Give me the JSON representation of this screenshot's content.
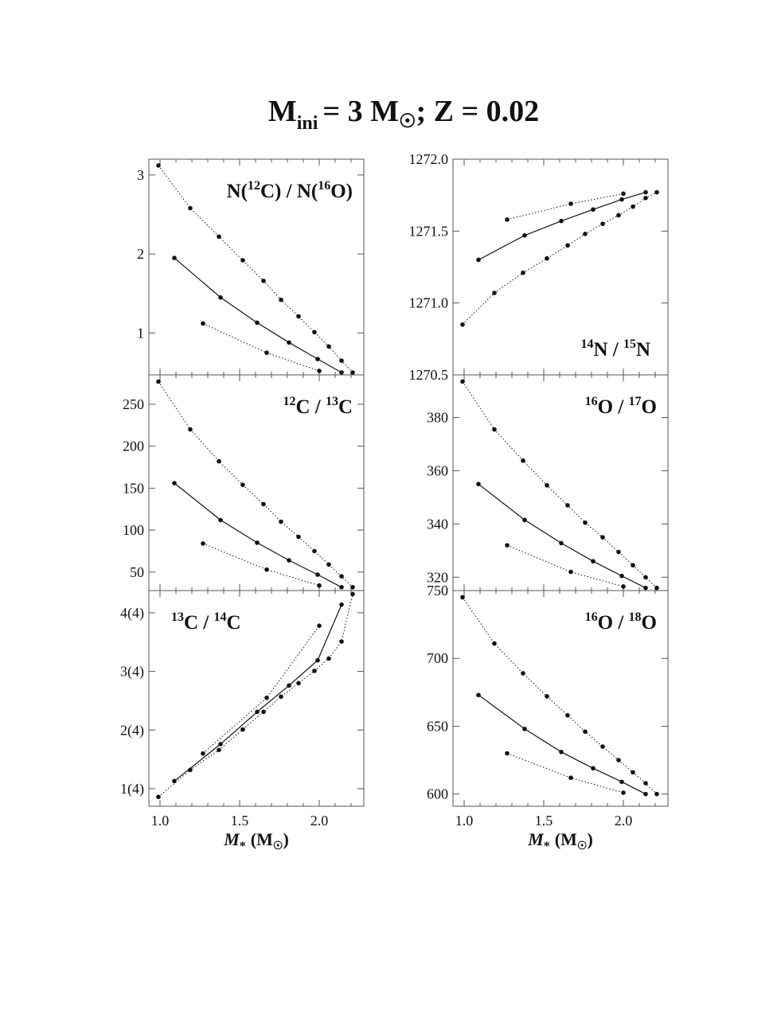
{
  "figure": {
    "title": {
      "main": "M",
      "sub": "ini",
      "rest": "= 3 M",
      "tail": "; Z = 0.02"
    },
    "xlabel": "M",
    "xlabel_unit": "(M",
    "xlabel_close": ")"
  },
  "chart_data": [
    {
      "type": "line",
      "panel": "top-left",
      "label_parts": [
        "N(",
        "12",
        "C) / N(",
        "16",
        "O)"
      ],
      "label_position": "top-right",
      "xlim": [
        0.93,
        2.28
      ],
      "ylim": [
        0.47,
        3.2
      ],
      "xticks": [
        1.0,
        1.5,
        2.0
      ],
      "xtick_labels": [
        "1.0",
        "1.5",
        "2.0"
      ],
      "yticks": [
        1,
        2,
        3
      ],
      "ytick_labels": [
        "1",
        "2",
        "3"
      ],
      "series": [
        {
          "style": "dotted",
          "x": [
            0.99,
            1.19,
            1.37,
            1.52,
            1.65,
            1.76,
            1.87,
            1.97,
            2.06,
            2.14,
            2.21
          ],
          "y": [
            3.12,
            2.58,
            2.22,
            1.92,
            1.66,
            1.42,
            1.21,
            1.01,
            0.83,
            0.65,
            0.5
          ]
        },
        {
          "style": "solid",
          "x": [
            1.09,
            1.38,
            1.61,
            1.81,
            1.99,
            2.14
          ],
          "y": [
            1.95,
            1.45,
            1.13,
            0.88,
            0.67,
            0.5
          ]
        },
        {
          "style": "dotted",
          "x": [
            1.27,
            1.67,
            2.0
          ],
          "y": [
            1.12,
            0.75,
            0.52
          ]
        }
      ]
    },
    {
      "type": "line",
      "panel": "top-right",
      "label_parts": [
        "",
        "14",
        "N / ",
        "15",
        "N"
      ],
      "label_position": "bottom-right",
      "xlim": [
        0.93,
        2.28
      ],
      "ylim": [
        1270.5,
        1272.0
      ],
      "xticks": [
        1.0,
        1.5,
        2.0
      ],
      "xtick_labels": [
        "1.0",
        "1.5",
        "2.0"
      ],
      "yticks": [
        1270.5,
        1271.0,
        1271.5,
        1272.0
      ],
      "ytick_labels": [
        "1270.5",
        "1271.0",
        "1271.5",
        "1272.0"
      ],
      "series": [
        {
          "style": "dotted",
          "x": [
            1.27,
            1.67,
            2.0
          ],
          "y": [
            1271.58,
            1271.69,
            1271.76
          ]
        },
        {
          "style": "solid",
          "x": [
            1.09,
            1.38,
            1.61,
            1.81,
            1.99,
            2.14
          ],
          "y": [
            1271.3,
            1271.47,
            1271.57,
            1271.65,
            1271.72,
            1271.77
          ]
        },
        {
          "style": "dotted",
          "x": [
            0.99,
            1.19,
            1.37,
            1.52,
            1.65,
            1.76,
            1.87,
            1.97,
            2.06,
            2.14,
            2.21
          ],
          "y": [
            1270.85,
            1271.07,
            1271.21,
            1271.31,
            1271.4,
            1271.48,
            1271.55,
            1271.61,
            1271.67,
            1271.73,
            1271.77
          ]
        }
      ]
    },
    {
      "type": "line",
      "panel": "middle-left",
      "label_parts": [
        "",
        "12",
        "C / ",
        "13",
        "C"
      ],
      "label_position": "top-right",
      "xlim": [
        0.93,
        2.28
      ],
      "ylim": [
        28,
        285
      ],
      "xticks": [
        1.0,
        1.5,
        2.0
      ],
      "xtick_labels": [
        "1.0",
        "1.5",
        "2.0"
      ],
      "yticks": [
        50,
        100,
        150,
        200,
        250
      ],
      "ytick_labels": [
        "50",
        "100",
        "150",
        "200",
        "250"
      ],
      "series": [
        {
          "style": "dotted",
          "x": [
            0.99,
            1.19,
            1.37,
            1.52,
            1.65,
            1.76,
            1.87,
            1.97,
            2.06,
            2.14,
            2.21
          ],
          "y": [
            277,
            220,
            182,
            154,
            131,
            110,
            92,
            75,
            59,
            45,
            32
          ]
        },
        {
          "style": "solid",
          "x": [
            1.09,
            1.38,
            1.61,
            1.81,
            1.99,
            2.14
          ],
          "y": [
            156,
            112,
            85,
            64,
            47,
            32
          ]
        },
        {
          "style": "dotted",
          "x": [
            1.27,
            1.67,
            2.0
          ],
          "y": [
            84,
            53,
            34
          ]
        }
      ]
    },
    {
      "type": "line",
      "panel": "middle-right",
      "label_parts": [
        "",
        "16",
        "O / ",
        "17",
        "O"
      ],
      "label_position": "top-right",
      "xlim": [
        0.93,
        2.28
      ],
      "ylim": [
        315,
        396
      ],
      "xticks": [
        1.0,
        1.5,
        2.0
      ],
      "xtick_labels": [
        "1.0",
        "1.5",
        "2.0"
      ],
      "yticks": [
        320,
        340,
        360,
        380
      ],
      "ytick_labels": [
        "320",
        "340",
        "360",
        "380"
      ],
      "series": [
        {
          "style": "dotted",
          "x": [
            0.99,
            1.19,
            1.37,
            1.52,
            1.65,
            1.76,
            1.87,
            1.97,
            2.06,
            2.14,
            2.21
          ],
          "y": [
            393.5,
            375.5,
            363.8,
            354.5,
            347,
            340.5,
            335,
            329.5,
            324.5,
            320,
            316
          ]
        },
        {
          "style": "solid",
          "x": [
            1.09,
            1.38,
            1.61,
            1.81,
            1.99,
            2.14
          ],
          "y": [
            355,
            341.5,
            332.8,
            326,
            320.5,
            316
          ]
        },
        {
          "style": "dotted",
          "x": [
            1.27,
            1.67,
            2.0
          ],
          "y": [
            332,
            322,
            316.5
          ]
        }
      ]
    },
    {
      "type": "line",
      "panel": "bottom-left",
      "label_parts": [
        "",
        "13",
        "C / ",
        "14",
        "C"
      ],
      "label_position": "top-left",
      "xlim": [
        0.93,
        2.28
      ],
      "ylim": [
        0.7,
        4.38
      ],
      "xticks": [
        1.0,
        1.5,
        2.0
      ],
      "xtick_labels": [
        "1.0",
        "1.5",
        "2.0"
      ],
      "yticks": [
        1,
        2,
        3,
        4
      ],
      "ytick_labels": [
        "1(4)",
        "2(4)",
        "3(4)",
        "4(4)"
      ],
      "series": [
        {
          "style": "dotted",
          "x": [
            1.27,
            1.67,
            2.0
          ],
          "y": [
            1.6,
            2.55,
            3.78
          ]
        },
        {
          "style": "solid",
          "x": [
            1.09,
            1.38,
            1.61,
            1.81,
            1.99,
            2.14
          ],
          "y": [
            1.13,
            1.76,
            2.31,
            2.76,
            3.19,
            4.14
          ]
        },
        {
          "style": "dotted",
          "x": [
            0.99,
            1.19,
            1.37,
            1.52,
            1.65,
            1.76,
            1.87,
            1.97,
            2.06,
            2.14,
            2.21
          ],
          "y": [
            0.86,
            1.32,
            1.66,
            2.01,
            2.31,
            2.57,
            2.8,
            3.01,
            3.22,
            3.51,
            4.32
          ]
        }
      ]
    },
    {
      "type": "line",
      "panel": "bottom-right",
      "label_parts": [
        "",
        "16",
        "O / ",
        "18",
        "O"
      ],
      "label_position": "top-right",
      "xlim": [
        0.93,
        2.28
      ],
      "ylim": [
        591,
        750
      ],
      "xticks": [
        1.0,
        1.5,
        2.0
      ],
      "xtick_labels": [
        "1.0",
        "1.5",
        "2.0"
      ],
      "yticks": [
        600,
        650,
        700,
        750
      ],
      "ytick_labels": [
        "600",
        "650",
        "700",
        "750"
      ],
      "series": [
        {
          "style": "dotted",
          "x": [
            0.99,
            1.19,
            1.37,
            1.52,
            1.65,
            1.76,
            1.87,
            1.97,
            2.06,
            2.14,
            2.21
          ],
          "y": [
            745,
            711,
            689,
            672,
            658,
            646,
            635,
            625,
            616,
            608,
            600
          ]
        },
        {
          "style": "solid",
          "x": [
            1.09,
            1.38,
            1.61,
            1.81,
            1.99,
            2.14
          ],
          "y": [
            673,
            648,
            631,
            619,
            609,
            600
          ]
        },
        {
          "style": "dotted",
          "x": [
            1.27,
            1.67,
            2.0
          ],
          "y": [
            630,
            612,
            601
          ]
        }
      ]
    }
  ]
}
